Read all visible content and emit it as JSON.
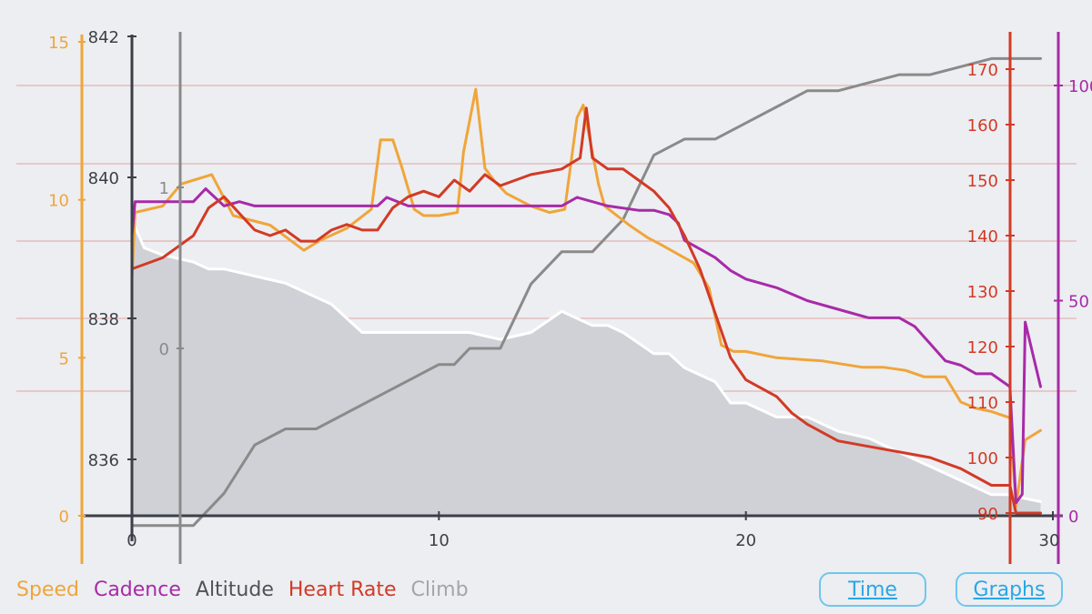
{
  "legend": {
    "speed": "Speed",
    "cadence": "Cadence",
    "altitude": "Altitude",
    "heart_rate": "Heart Rate",
    "climb": "Climb"
  },
  "buttons": {
    "time": "Time",
    "graphs": "Graphs"
  },
  "colors": {
    "speed": "#f0a53a",
    "cadence": "#a82aa8",
    "altitude": "#ffffff",
    "altitude_fill": "#cfd1d6",
    "heart_rate": "#d23a26",
    "climb": "#8a8a8a",
    "axis": "#3c3f47",
    "grid": "#e1a4a4",
    "background": "#eceef1",
    "button": "#2aa6e6"
  },
  "chart_data": {
    "type": "line",
    "x_axis": {
      "range": [
        0,
        30
      ],
      "ticks": [
        0,
        10,
        20,
        30
      ]
    },
    "axes": {
      "speed": {
        "range": [
          0,
          15
        ],
        "ticks": [
          0,
          5,
          10,
          15
        ]
      },
      "altitude": {
        "range": [
          835.2,
          842
        ],
        "ticks": [
          836,
          838,
          840,
          842
        ]
      },
      "climb": {
        "range": [
          0,
          1
        ],
        "ticks": [
          0,
          1
        ]
      },
      "heart_rate": {
        "range": [
          90,
          170
        ],
        "ticks": [
          90,
          100,
          110,
          120,
          130,
          140,
          150,
          160,
          170
        ]
      },
      "cadence": {
        "range": [
          0,
          100
        ],
        "ticks": [
          0,
          50,
          100
        ]
      }
    },
    "series": [
      {
        "name": "Speed",
        "axis": "speed",
        "points": [
          [
            0,
            7.5
          ],
          [
            0.1,
            9.6
          ],
          [
            1,
            9.8
          ],
          [
            1.6,
            10.5
          ],
          [
            2.6,
            10.8
          ],
          [
            3.3,
            9.5
          ],
          [
            4.5,
            9.2
          ],
          [
            5.6,
            8.4
          ],
          [
            6.1,
            8.7
          ],
          [
            7,
            9.1
          ],
          [
            7.8,
            9.7
          ],
          [
            8.1,
            11.9
          ],
          [
            8.5,
            11.9
          ],
          [
            8.8,
            11.0
          ],
          [
            9.2,
            9.7
          ],
          [
            9.5,
            9.5
          ],
          [
            10,
            9.5
          ],
          [
            10.6,
            9.6
          ],
          [
            10.8,
            11.5
          ],
          [
            11.2,
            13.5
          ],
          [
            11.5,
            11.0
          ],
          [
            11.8,
            10.6
          ],
          [
            12.2,
            10.2
          ],
          [
            13,
            9.8
          ],
          [
            13.6,
            9.6
          ],
          [
            14.1,
            9.7
          ],
          [
            14.5,
            12.6
          ],
          [
            14.7,
            13.0
          ],
          [
            15.2,
            10.5
          ],
          [
            15.4,
            9.8
          ],
          [
            16.2,
            9.2
          ],
          [
            16.8,
            8.8
          ],
          [
            17.2,
            8.6
          ],
          [
            18.3,
            8.0
          ],
          [
            18.8,
            7.2
          ],
          [
            19.2,
            5.4
          ],
          [
            19.6,
            5.2
          ],
          [
            20,
            5.2
          ],
          [
            21,
            5.0
          ],
          [
            22.5,
            4.9
          ],
          [
            23.8,
            4.7
          ],
          [
            24.5,
            4.7
          ],
          [
            25.2,
            4.6
          ],
          [
            25.8,
            4.4
          ],
          [
            26.5,
            4.4
          ],
          [
            27,
            3.6
          ],
          [
            27.5,
            3.4
          ],
          [
            28,
            3.3
          ],
          [
            28.6,
            3.1
          ],
          [
            28.8,
            0.3
          ],
          [
            29.1,
            2.4
          ],
          [
            29.6,
            2.7
          ]
        ]
      },
      {
        "name": "Cadence",
        "axis": "cadence",
        "points": [
          [
            0,
            65
          ],
          [
            0.1,
            73
          ],
          [
            0.5,
            73
          ],
          [
            1,
            73
          ],
          [
            1.5,
            73
          ],
          [
            2,
            73
          ],
          [
            2.4,
            76
          ],
          [
            3,
            72
          ],
          [
            3.5,
            73
          ],
          [
            4,
            72
          ],
          [
            5,
            72
          ],
          [
            6,
            72
          ],
          [
            7,
            72
          ],
          [
            8,
            72
          ],
          [
            8.3,
            74
          ],
          [
            9,
            72
          ],
          [
            10,
            72
          ],
          [
            11,
            72
          ],
          [
            12,
            72
          ],
          [
            13,
            72
          ],
          [
            14,
            72
          ],
          [
            14.5,
            74
          ],
          [
            15,
            73
          ],
          [
            15.5,
            72
          ],
          [
            16.5,
            71
          ],
          [
            17,
            71
          ],
          [
            17.5,
            70
          ],
          [
            17.8,
            68
          ],
          [
            18,
            64
          ],
          [
            18.5,
            62
          ],
          [
            19,
            60
          ],
          [
            19.5,
            57
          ],
          [
            20,
            55
          ],
          [
            21,
            53
          ],
          [
            22,
            50
          ],
          [
            23,
            48
          ],
          [
            24,
            46
          ],
          [
            25,
            46
          ],
          [
            25.5,
            44
          ],
          [
            26,
            40
          ],
          [
            26.5,
            36
          ],
          [
            27,
            35
          ],
          [
            27.5,
            33
          ],
          [
            28,
            33
          ],
          [
            28.4,
            31
          ],
          [
            28.6,
            30
          ],
          [
            28.8,
            3
          ],
          [
            29,
            5
          ],
          [
            29.1,
            45
          ],
          [
            29.6,
            30
          ]
        ]
      },
      {
        "name": "Altitude",
        "axis": "altitude",
        "points": [
          [
            0,
            839.4
          ],
          [
            0.4,
            839.0
          ],
          [
            1,
            838.9
          ],
          [
            2,
            838.8
          ],
          [
            2.5,
            838.7
          ],
          [
            3,
            838.7
          ],
          [
            4,
            838.6
          ],
          [
            5,
            838.5
          ],
          [
            5.5,
            838.4
          ],
          [
            6,
            838.3
          ],
          [
            6.5,
            838.2
          ],
          [
            7,
            838.0
          ],
          [
            7.5,
            837.8
          ],
          [
            8,
            837.8
          ],
          [
            8.5,
            837.8
          ],
          [
            9,
            837.8
          ],
          [
            10,
            837.8
          ],
          [
            11,
            837.8
          ],
          [
            12,
            837.7
          ],
          [
            13,
            837.8
          ],
          [
            14,
            838.1
          ],
          [
            15,
            837.9
          ],
          [
            15.5,
            837.9
          ],
          [
            16,
            837.8
          ],
          [
            17,
            837.5
          ],
          [
            17.5,
            837.5
          ],
          [
            18,
            837.3
          ],
          [
            19,
            837.1
          ],
          [
            19.5,
            836.8
          ],
          [
            20,
            836.8
          ],
          [
            21,
            836.6
          ],
          [
            22,
            836.6
          ],
          [
            23,
            836.4
          ],
          [
            24,
            836.3
          ],
          [
            25,
            836.1
          ],
          [
            26,
            835.9
          ],
          [
            27,
            835.7
          ],
          [
            28,
            835.5
          ],
          [
            28.5,
            835.5
          ],
          [
            29.6,
            835.4
          ]
        ]
      },
      {
        "name": "Heart Rate",
        "axis": "heart_rate",
        "points": [
          [
            0,
            134
          ],
          [
            0.5,
            135
          ],
          [
            1,
            136
          ],
          [
            1.5,
            138
          ],
          [
            2,
            140
          ],
          [
            2.5,
            145
          ],
          [
            3,
            147
          ],
          [
            3.5,
            144
          ],
          [
            4,
            141
          ],
          [
            4.5,
            140
          ],
          [
            5,
            141
          ],
          [
            5.5,
            139
          ],
          [
            6,
            139
          ],
          [
            6.5,
            141
          ],
          [
            7,
            142
          ],
          [
            7.5,
            141
          ],
          [
            8,
            141
          ],
          [
            8.5,
            145
          ],
          [
            9,
            147
          ],
          [
            9.5,
            148
          ],
          [
            10,
            147
          ],
          [
            10.5,
            150
          ],
          [
            11,
            148
          ],
          [
            11.5,
            151
          ],
          [
            12,
            149
          ],
          [
            13,
            151
          ],
          [
            14,
            152
          ],
          [
            14.6,
            154
          ],
          [
            14.8,
            163
          ],
          [
            15,
            154
          ],
          [
            15.5,
            152
          ],
          [
            16,
            152
          ],
          [
            16.5,
            150
          ],
          [
            17,
            148
          ],
          [
            17.5,
            145
          ],
          [
            18,
            140
          ],
          [
            18.5,
            134
          ],
          [
            19,
            126
          ],
          [
            19.5,
            118
          ],
          [
            20,
            114
          ],
          [
            21,
            111
          ],
          [
            21.5,
            108
          ],
          [
            22,
            106
          ],
          [
            23,
            103
          ],
          [
            24,
            102
          ],
          [
            25,
            101
          ],
          [
            26,
            100
          ],
          [
            27,
            98
          ],
          [
            28,
            95
          ],
          [
            28.6,
            95
          ],
          [
            28.8,
            90
          ],
          [
            29.6,
            90
          ]
        ]
      },
      {
        "name": "Climb",
        "axis": "climb",
        "points": [
          [
            0,
            -1.1
          ],
          [
            1,
            -1.1
          ],
          [
            2,
            -1.1
          ],
          [
            3,
            -0.9
          ],
          [
            4,
            -0.6
          ],
          [
            5,
            -0.5
          ],
          [
            6,
            -0.5
          ],
          [
            7,
            -0.4
          ],
          [
            8,
            -0.3
          ],
          [
            9,
            -0.2
          ],
          [
            10,
            -0.1
          ],
          [
            10.5,
            -0.1
          ],
          [
            11,
            0.0
          ],
          [
            12,
            0.0
          ],
          [
            13,
            0.4
          ],
          [
            14,
            0.6
          ],
          [
            15,
            0.6
          ],
          [
            16,
            0.8
          ],
          [
            17,
            1.2
          ],
          [
            18,
            1.3
          ],
          [
            19,
            1.3
          ],
          [
            20,
            1.4
          ],
          [
            21,
            1.5
          ],
          [
            22,
            1.6
          ],
          [
            23,
            1.6
          ],
          [
            24,
            1.65
          ],
          [
            25,
            1.7
          ],
          [
            26,
            1.7
          ],
          [
            27,
            1.75
          ],
          [
            28,
            1.8
          ],
          [
            29.6,
            1.8
          ]
        ]
      }
    ]
  }
}
